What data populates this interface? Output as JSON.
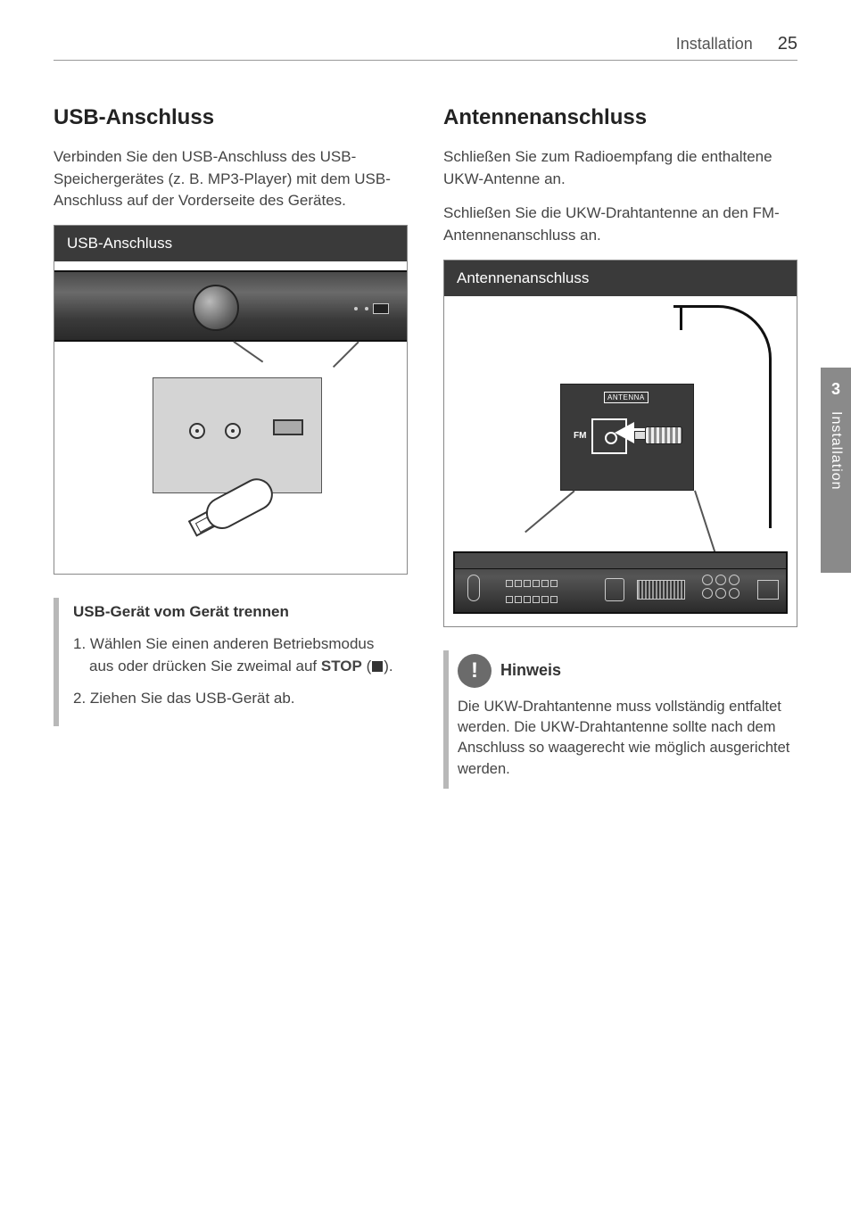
{
  "header": {
    "section": "Installation",
    "page": "25"
  },
  "sidebar": {
    "chapter": "3",
    "label": "Installation"
  },
  "left": {
    "h2": "USB-Anschluss",
    "intro": "Verbinden Sie den USB-Anschluss des USB-Speichergerätes (z. B. MP3-Player) mit dem USB-Anschluss auf der Vorderseite des Gerätes.",
    "fig_caption": "USB-Anschluss",
    "sub_title": "USB-Gerät vom Gerät trennen",
    "step1_a": "1. Wählen Sie einen anderen Betriebsmodus aus oder drücken Sie zweimal auf ",
    "step1_stop": "STOP",
    "step1_b": " (",
    "step1_c": ").",
    "step2": "2.  Ziehen Sie das USB-Gerät ab."
  },
  "right": {
    "h2": "Antennenanschluss",
    "p1": "Schließen Sie zum Radioempfang die enthaltene UKW-Antenne an.",
    "p2": "Schließen Sie die UKW-Drahtantenne an den FM-Antennenanschluss an.",
    "fig_caption": "Antennenanschluss",
    "antenna_label": "ANTENNA",
    "fm_label": "FM",
    "note_title": "Hinweis",
    "note_text": "Die UKW-Drahtantenne muss vollständig entfaltet werden. Die UKW-Drahtantenne sollte nach dem Anschluss so waagerecht wie möglich ausgerichtet werden."
  }
}
